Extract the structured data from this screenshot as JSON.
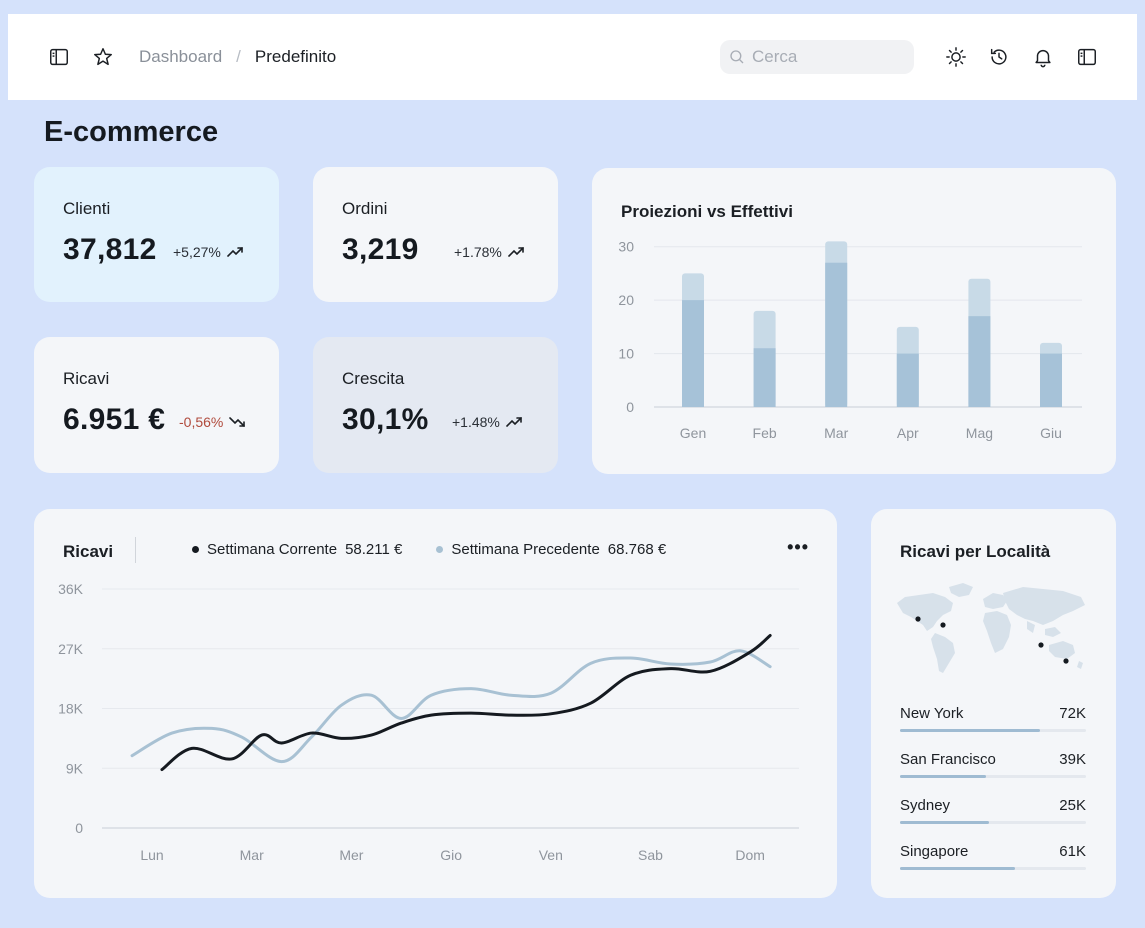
{
  "header": {
    "breadcrumb": {
      "root": "Dashboard",
      "separator": "/",
      "current": "Predefinito"
    },
    "search": {
      "placeholder": "Cerca",
      "value": ""
    },
    "icons": [
      "sidebar-toggle-icon",
      "star-icon",
      "sun-icon",
      "history-icon",
      "bell-icon",
      "panel-icon"
    ]
  },
  "page": {
    "title": "E-commerce"
  },
  "stats": [
    {
      "label": "Clienti",
      "value": "37,812",
      "delta": "+5,27%",
      "trend": "up"
    },
    {
      "label": "Ordini",
      "value": "3,219",
      "delta": "+1.78%",
      "trend": "up"
    },
    {
      "label": "Ricavi",
      "value": "6.951 €",
      "delta": "-0,56%",
      "trend": "down"
    },
    {
      "label": "Crescita",
      "value": "30,1%",
      "delta": "+1.48%",
      "trend": "up"
    }
  ],
  "colors": {
    "background": "#d5e2fb",
    "card_blue": "#e2f2fd",
    "card_default": "#f4f6f9",
    "card_grey": "#e4e9f2",
    "negative": "#b04a3c",
    "bar_actual": "#a6c2d8",
    "bar_projection": "#c8dae7",
    "line_current": "#151a20",
    "line_previous": "#a8c1d3"
  },
  "chart_data": [
    {
      "type": "bar",
      "title": "Proiezioni vs Effettivi",
      "categories": [
        "Gen",
        "Feb",
        "Mar",
        "Apr",
        "Mag",
        "Giu"
      ],
      "series": [
        {
          "name": "",
          "values": [
            20,
            11,
            27,
            10,
            17,
            10
          ]
        },
        {
          "name": "",
          "values": [
            25,
            18,
            31,
            15,
            24,
            12
          ]
        }
      ],
      "yticks": [
        0,
        10,
        20,
        30
      ],
      "ylim": [
        0,
        32
      ],
      "grid": true,
      "stacked_overlay": true
    },
    {
      "type": "line",
      "title": "Ricavi",
      "categories": [
        "Lun",
        "Mar",
        "Mer",
        "Gio",
        "Ven",
        "Sab",
        "Dom"
      ],
      "yticks": [
        "0",
        "9K",
        "18K",
        "27K",
        "36K"
      ],
      "ylim": [
        0,
        36000
      ],
      "grid": true,
      "series": [
        {
          "name": "Settimana Corrente",
          "total": "58.211 €",
          "x": [
            0.1,
            0.4,
            0.8,
            1.1,
            1.3,
            1.6,
            1.9,
            2.2,
            2.5,
            2.8,
            3.2,
            3.6,
            4.0,
            4.4,
            4.8,
            5.2,
            5.6,
            6.0,
            6.2
          ],
          "y": [
            8800,
            12000,
            10400,
            14000,
            12800,
            14300,
            13500,
            14000,
            15800,
            17000,
            17300,
            17000,
            17200,
            18800,
            23000,
            24000,
            23600,
            26500,
            29000
          ]
        },
        {
          "name": "Settimana Precedente",
          "total": "68.768 €",
          "x": [
            -0.2,
            0.2,
            0.6,
            0.9,
            1.3,
            1.6,
            1.9,
            2.2,
            2.5,
            2.8,
            3.2,
            3.6,
            4.0,
            4.4,
            4.8,
            5.2,
            5.6,
            5.9,
            6.2
          ],
          "y": [
            10900,
            14300,
            15000,
            13700,
            10000,
            13700,
            18500,
            20000,
            16500,
            20000,
            21000,
            20000,
            20300,
            24800,
            25600,
            24700,
            25000,
            26700,
            24300
          ]
        }
      ]
    }
  ],
  "locations": {
    "title": "Ricavi per Località",
    "items": [
      {
        "city": "New York",
        "value": "72K",
        "share": 0.75
      },
      {
        "city": "San Francisco",
        "value": "39K",
        "share": 0.46
      },
      {
        "city": "Sydney",
        "value": "25K",
        "share": 0.48
      },
      {
        "city": "Singapore",
        "value": "61K",
        "share": 0.62
      }
    ]
  },
  "revenue_panel": {
    "more_label": "•••"
  }
}
